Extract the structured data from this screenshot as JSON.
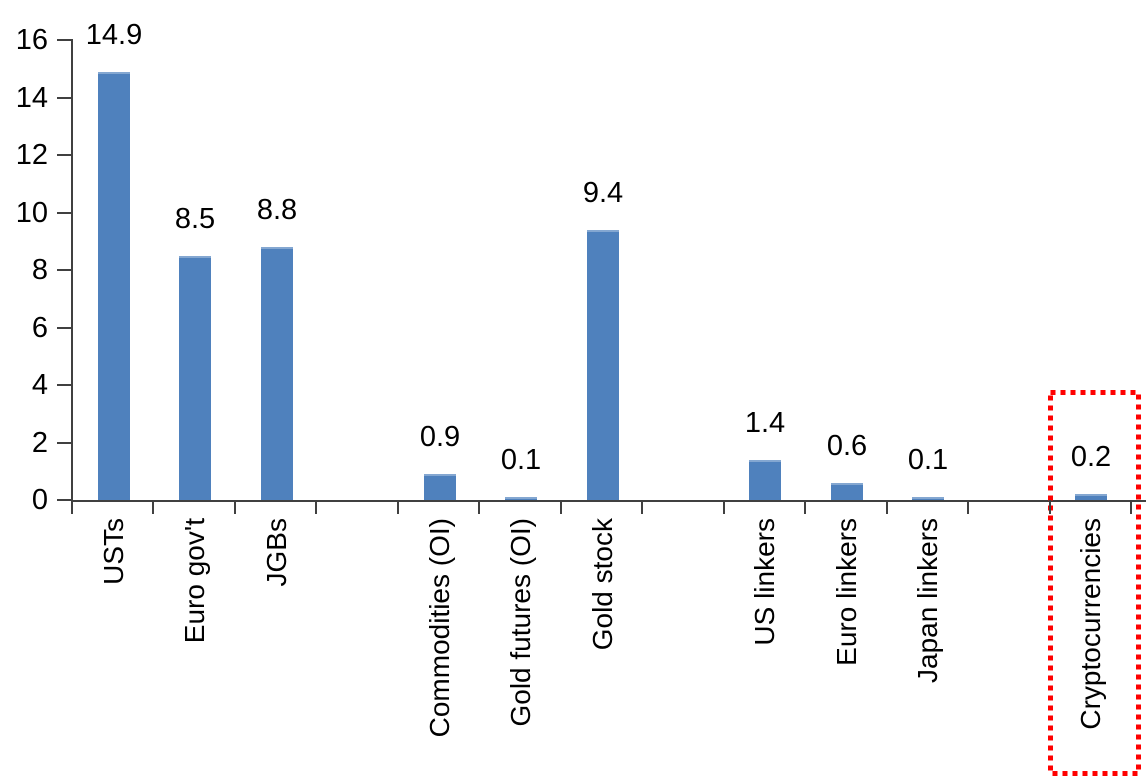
{
  "chart_data": {
    "type": "bar",
    "title": "",
    "xlabel": "",
    "ylabel": "",
    "categories": [
      "USTs",
      "Euro gov't",
      "JGBs",
      "Commodities (OI)",
      "Gold futures (OI)",
      "Gold stock",
      "US linkers",
      "Euro linkers",
      "Japan linkers",
      "Cryptocurrencies"
    ],
    "values": [
      14.9,
      8.5,
      8.8,
      0.9,
      0.1,
      9.4,
      1.4,
      0.6,
      0.1,
      0.2
    ],
    "value_labels": [
      "14.9",
      "8.5",
      "8.8",
      "0.9",
      "0.1",
      "9.4",
      "1.4",
      "0.6",
      "0.1",
      "0.2"
    ],
    "slot_indices": [
      0,
      1,
      2,
      4,
      5,
      6,
      8,
      9,
      10,
      12
    ],
    "total_slots": 13,
    "groups": [
      [
        "USTs",
        "Euro gov't",
        "JGBs"
      ],
      [
        "Commodities (OI)",
        "Gold futures (OI)",
        "Gold stock"
      ],
      [
        "US linkers",
        "Euro linkers",
        "Japan linkers"
      ],
      [
        "Cryptocurrencies"
      ]
    ],
    "ylim": [
      0,
      16
    ],
    "yticks": [
      "0",
      "2",
      "4",
      "6",
      "8",
      "10",
      "12",
      "14",
      "16"
    ],
    "grid": false,
    "legend": false,
    "x_label_rotation_degrees": -90,
    "bar_color": "#4F81BD",
    "axis_color": "#404040",
    "text_color": "#000000",
    "highlight": {
      "category": "Cryptocurrencies",
      "value": 0.2,
      "shape": "dotted-rectangle",
      "color": "#FF0000"
    }
  }
}
